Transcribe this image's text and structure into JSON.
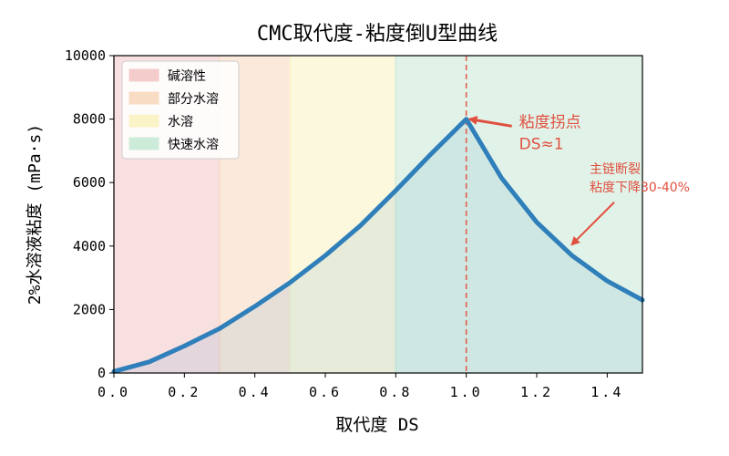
{
  "chart_data": {
    "type": "line",
    "title": "CMC取代度-粘度倒U型曲线",
    "xlabel": "取代度 DS",
    "ylabel": "2%水溶液粘度 (mPa·s)",
    "xlim": [
      0.0,
      1.5
    ],
    "ylim": [
      0,
      10000
    ],
    "x_ticks": [
      "0.0",
      "0.2",
      "0.4",
      "0.6",
      "0.8",
      "1.0",
      "1.2",
      "1.4"
    ],
    "y_ticks": [
      "0",
      "2000",
      "4000",
      "6000",
      "8000",
      "10000"
    ],
    "grid": false,
    "legend_position": "top-left",
    "regions": [
      {
        "label": "碱溶性",
        "range": [
          0.0,
          0.3
        ],
        "color": "#f4cccc"
      },
      {
        "label": "部分水溶",
        "range": [
          0.3,
          0.5
        ],
        "color": "#f9dcc4"
      },
      {
        "label": "水溶",
        "range": [
          0.5,
          0.8
        ],
        "color": "#faf3c8"
      },
      {
        "label": "快速水溶",
        "range": [
          0.8,
          1.5
        ],
        "color": "#cdebd9"
      }
    ],
    "series": [
      {
        "x": [
          0.0,
          0.1,
          0.2,
          0.3,
          0.4,
          0.5,
          0.6,
          0.7,
          0.8,
          0.9,
          1.0,
          1.1,
          1.2,
          1.3,
          1.4,
          1.5
        ],
        "values": [
          50,
          350,
          850,
          1400,
          2100,
          2850,
          3700,
          4650,
          5750,
          6900,
          8000,
          6150,
          4750,
          3700,
          2900,
          2300
        ],
        "color": "#2f7fba"
      }
    ],
    "vline": {
      "x": 1.0,
      "color": "#e06050"
    },
    "annotations": [
      {
        "lines": [
          "粘度拐点",
          "DS≈1"
        ],
        "x": 1.15,
        "y": 7750,
        "arrow_tip": {
          "x": 1.01,
          "y": 8000
        },
        "color": "#e05040"
      },
      {
        "lines": [
          "主链断裂",
          "粘度下降30-40%"
        ],
        "x": 1.35,
        "y": 6300,
        "arrow_tip": {
          "x": 1.3,
          "y": 4050
        },
        "color": "#e05040"
      }
    ]
  }
}
